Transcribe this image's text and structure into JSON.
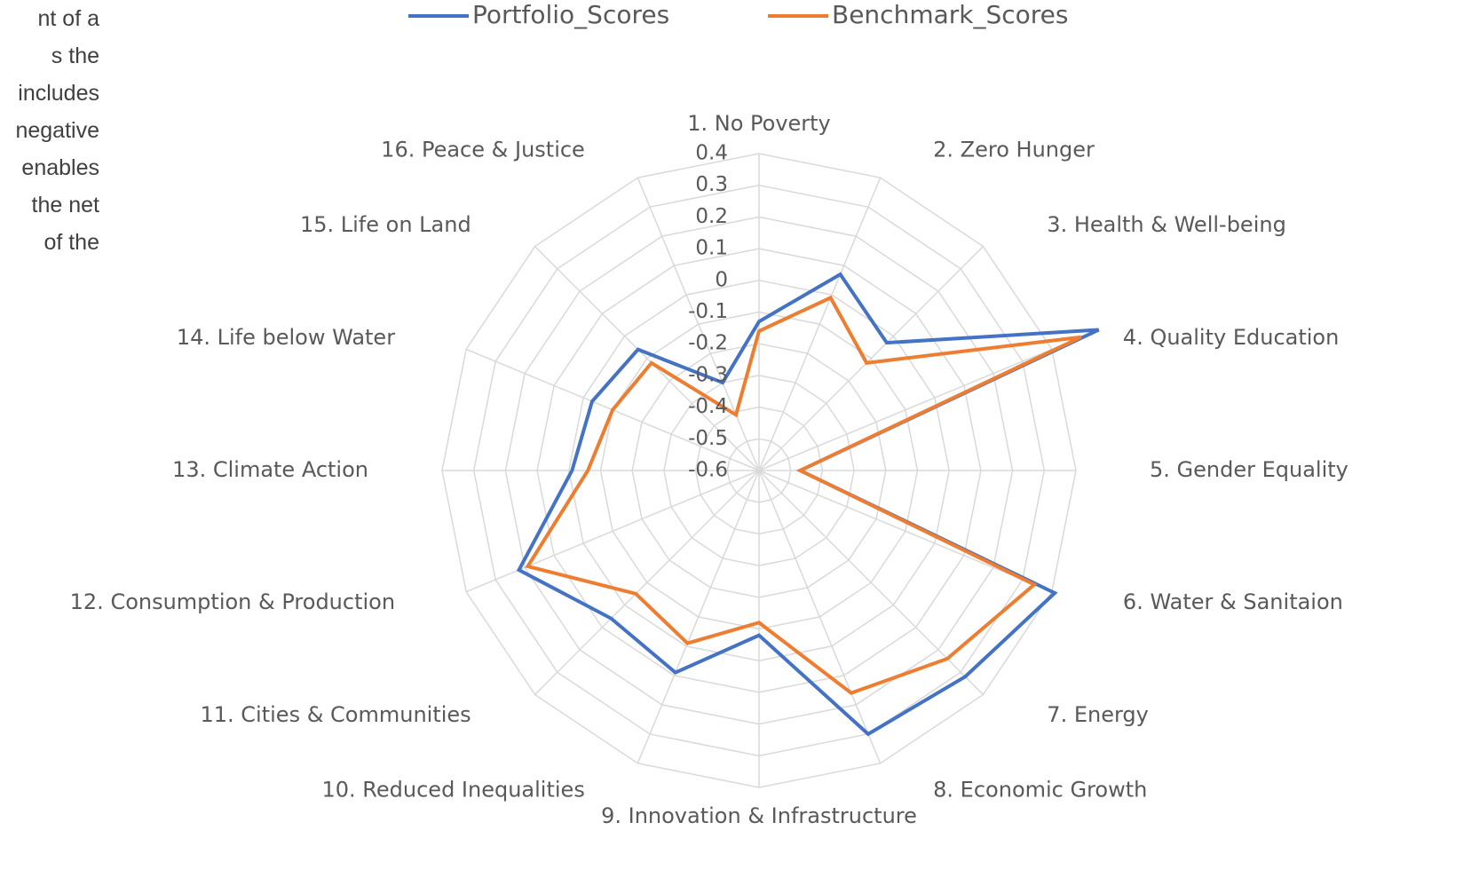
{
  "side_text": [
    "nt of a",
    "s the",
    "includes",
    "negative",
    "enables",
    "the net",
    "of the"
  ],
  "chart_data": {
    "type": "radar",
    "categories": [
      "1. No Poverty",
      "2. Zero Hunger",
      "3. Health & Well-being",
      "4. Quality Education",
      "5. Gender Equality",
      "6. Water & Sanitaion",
      "7. Energy",
      "8. Economic Growth",
      "9. Innovation & Infrastructure",
      "10. Reduced Inequalities",
      "11. Cities & Communities",
      "12. Consumption & Production",
      "13. Climate Action",
      "14. Life below Water",
      "15. Life on Land",
      "16. Peace & Justice"
    ],
    "series": [
      {
        "name": "Portfolio_Scores",
        "color": "#4472c4",
        "values": [
          -0.13,
          0.07,
          -0.03,
          0.56,
          -0.47,
          0.41,
          0.32,
          0.3,
          -0.08,
          0.09,
          0.06,
          0.22,
          -0.01,
          -0.03,
          -0.06,
          -0.3
        ]
      },
      {
        "name": "Benchmark_Scores",
        "color": "#ed7d31",
        "values": [
          -0.16,
          -0.01,
          -0.12,
          0.5,
          -0.47,
          0.34,
          0.24,
          0.16,
          -0.12,
          -0.01,
          -0.05,
          0.19,
          -0.06,
          -0.1,
          -0.12,
          -0.41
        ]
      }
    ],
    "ylim": [
      -0.6,
      0.4
    ],
    "yticks": [
      0.4,
      0.3,
      0.2,
      0.1,
      0,
      -0.1,
      -0.2,
      -0.3,
      -0.4,
      -0.5,
      -0.6
    ],
    "grid": true,
    "legend": "top"
  }
}
